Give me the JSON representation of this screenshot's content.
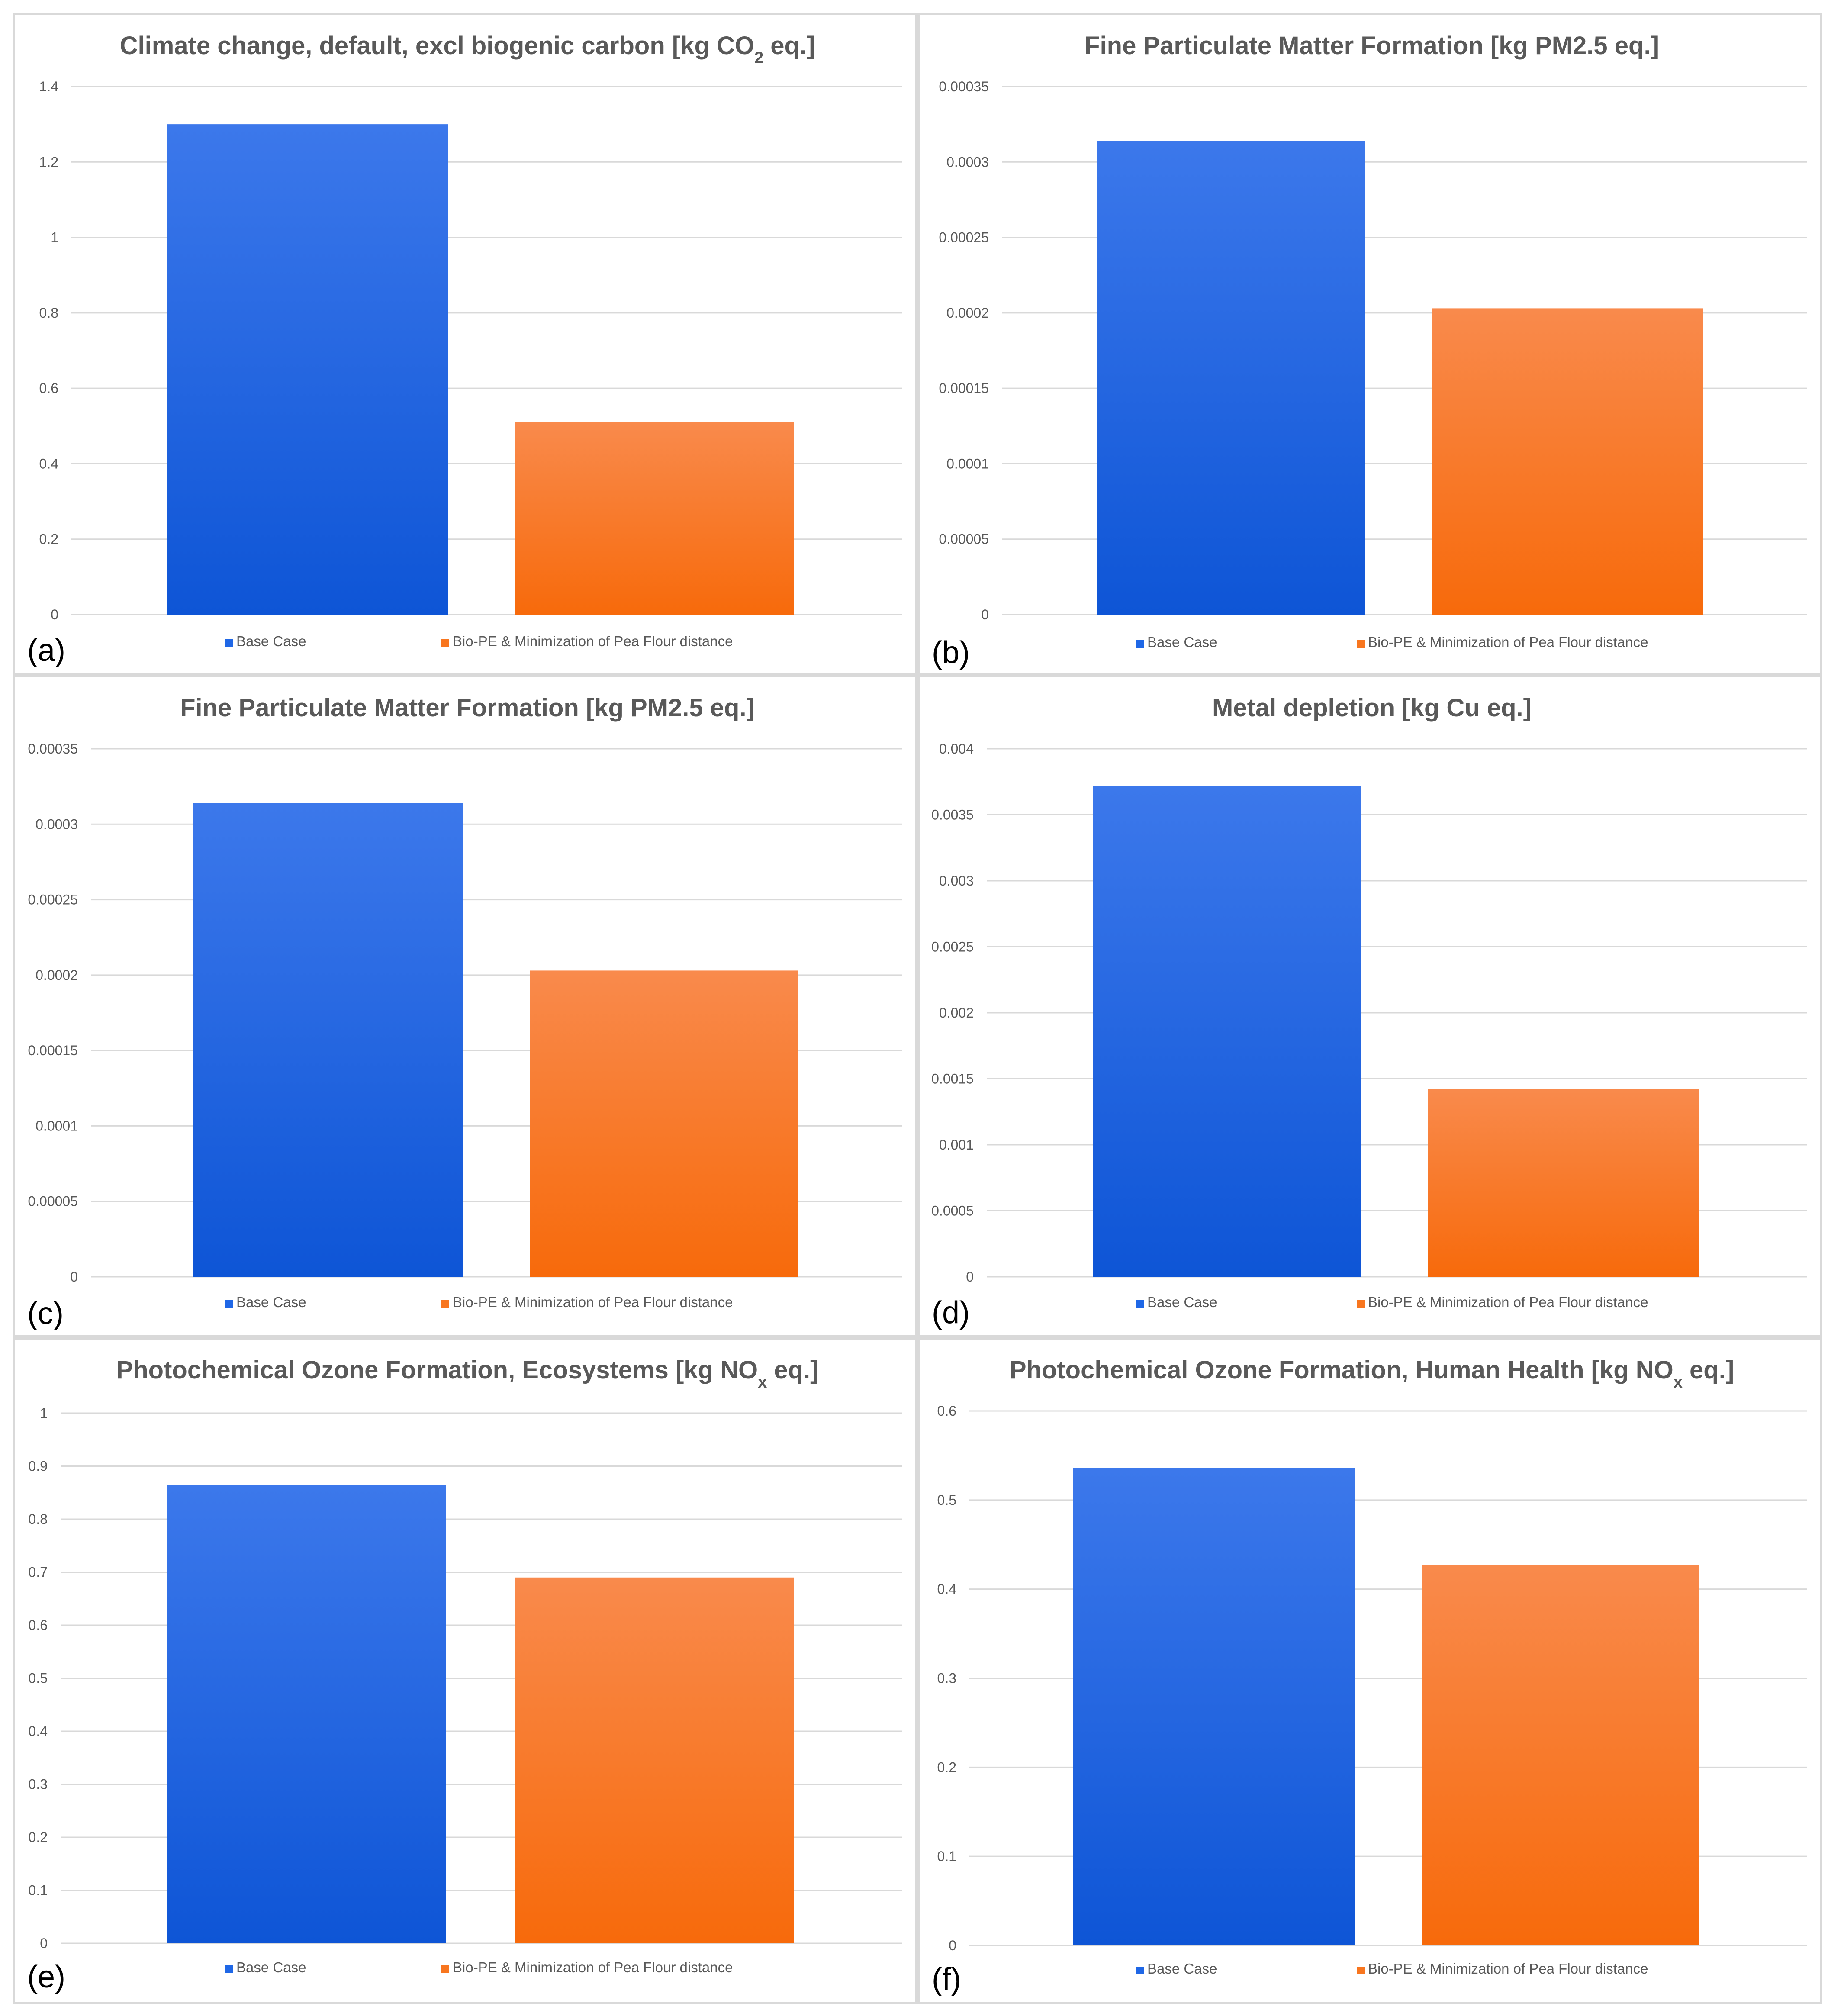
{
  "colors": {
    "base": "#1f67e6",
    "base_top": "#3c78eb",
    "base_bottom": "#0e55d6",
    "alt": "#f8761f",
    "alt_top": "#f98a4c",
    "alt_bottom": "#f76a0b",
    "grid": "#d9d9d9",
    "text": "#595959"
  },
  "chart_data": [
    {
      "type": "bar",
      "panel_label": "(a)",
      "title": "Climate change, default, excl biogenic carbon [kg CO",
      "title_sub": "2",
      "title_end": " eq.]",
      "categories": [
        "Base Case",
        "Bio-PE & Minimization of Pea Flour distance"
      ],
      "values": [
        1.3,
        0.51
      ],
      "ylim": [
        0,
        1.4
      ],
      "yticks": [
        "0",
        "0.2",
        "0.4",
        "0.6",
        "0.8",
        "1",
        "1.2",
        "1.4"
      ],
      "legend": [
        "Base Case",
        "Bio-PE & Minimization of Pea Flour distance"
      ],
      "grid": true,
      "legend_position": "bottom"
    },
    {
      "type": "bar",
      "panel_label": "(b)",
      "title": "Fine Particulate Matter Formation [kg PM2.5 eq.]",
      "title_sub": "",
      "title_end": "",
      "categories": [
        "Base Case",
        "Bio-PE & Minimization of Pea Flour distance"
      ],
      "values": [
        0.000314,
        0.000203
      ],
      "ylim": [
        0,
        0.00035
      ],
      "yticks": [
        "0",
        "0.00005",
        "0.0001",
        "0.00015",
        "0.0002",
        "0.00025",
        "0.0003",
        "0.00035"
      ],
      "legend": [
        "Base Case",
        "Bio-PE & Minimization of Pea Flour distance"
      ],
      "grid": true,
      "legend_position": "bottom"
    },
    {
      "type": "bar",
      "panel_label": "(c)",
      "title": "Fine Particulate Matter Formation [kg PM2.5 eq.]",
      "title_sub": "",
      "title_end": "",
      "categories": [
        "Base Case",
        "Bio-PE & Minimization of Pea Flour distance"
      ],
      "values": [
        0.000314,
        0.000203
      ],
      "ylim": [
        0,
        0.00035
      ],
      "yticks": [
        "0",
        "0.00005",
        "0.0001",
        "0.00015",
        "0.0002",
        "0.00025",
        "0.0003",
        "0.00035"
      ],
      "legend": [
        "Base Case",
        "Bio-PE & Minimization of Pea Flour distance"
      ],
      "grid": true,
      "legend_position": "bottom"
    },
    {
      "type": "bar",
      "panel_label": "(d)",
      "title": "Metal depletion [kg Cu eq.]",
      "title_sub": "",
      "title_end": "",
      "categories": [
        "Base Case",
        "Bio-PE & Minimization of Pea Flour distance"
      ],
      "values": [
        0.00372,
        0.00142
      ],
      "ylim": [
        0,
        0.004
      ],
      "yticks": [
        "0",
        "0.0005",
        "0.001",
        "0.0015",
        "0.002",
        "0.0025",
        "0.003",
        "0.0035",
        "0.004"
      ],
      "legend": [
        "Base Case",
        "Bio-PE & Minimization of Pea Flour distance"
      ],
      "grid": true,
      "legend_position": "bottom"
    },
    {
      "type": "bar",
      "panel_label": "(e)",
      "title": "Photochemical Ozone Formation, Ecosystems [kg NO",
      "title_sub": "x",
      "title_end": " eq.]",
      "categories": [
        "Base Case",
        "Bio-PE & Minimization of Pea Flour distance"
      ],
      "values": [
        0.865,
        0.69
      ],
      "ylim": [
        0,
        1
      ],
      "yticks": [
        "0",
        "0.1",
        "0.2",
        "0.3",
        "0.4",
        "0.5",
        "0.6",
        "0.7",
        "0.8",
        "0.9",
        "1"
      ],
      "legend": [
        "Base Case",
        "Bio-PE & Minimization of Pea Flour distance"
      ],
      "grid": true,
      "legend_position": "bottom"
    },
    {
      "type": "bar",
      "panel_label": "(f)",
      "title": "Photochemical Ozone Formation, Human Health [kg NO",
      "title_sub": "x",
      "title_end": " eq.]",
      "categories": [
        "Base Case",
        "Bio-PE & Minimization of Pea Flour distance"
      ],
      "values": [
        0.536,
        0.427
      ],
      "ylim": [
        0,
        0.6
      ],
      "yticks": [
        "0",
        "0.1",
        "0.2",
        "0.3",
        "0.4",
        "0.5",
        "0.6"
      ],
      "legend": [
        "Base Case",
        "Bio-PE & Minimization of Pea Flour distance"
      ],
      "grid": true,
      "legend_position": "bottom"
    }
  ]
}
